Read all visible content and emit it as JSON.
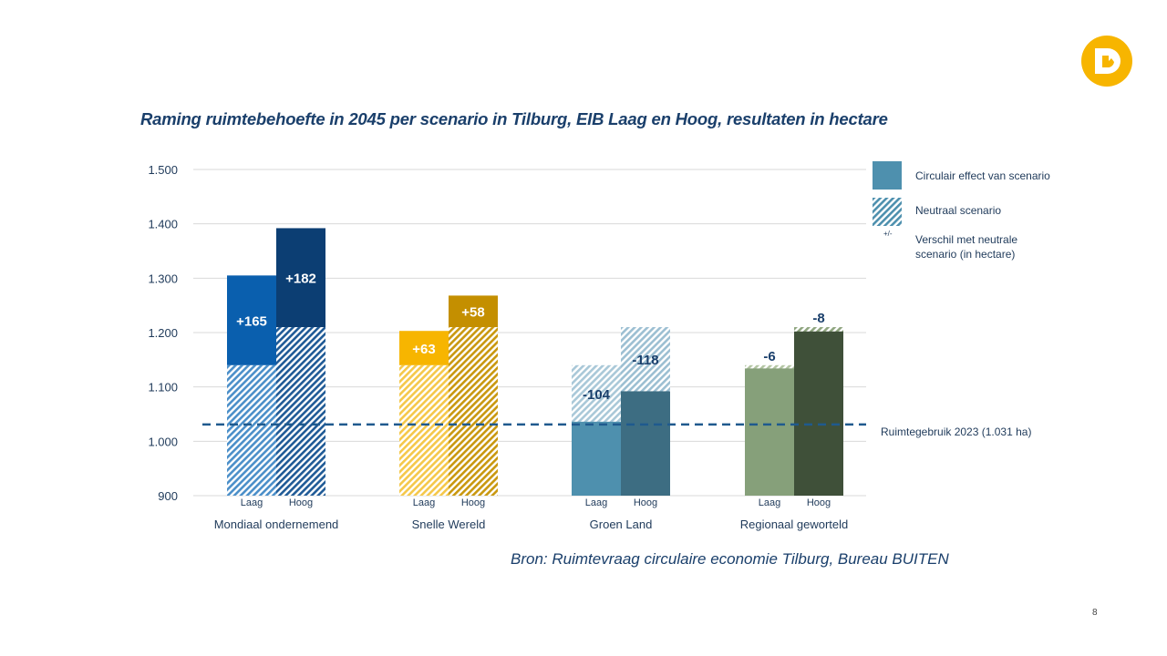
{
  "colors": {
    "title": "#1a3f6b",
    "axis_text": "#1f3a5a",
    "gridline": "#d9d9d9",
    "refline": "#1f5a8e",
    "logo": "#f7b500"
  },
  "page_number": "8",
  "source": "Bron: Ruimtevraag circulaire economie Tilburg, Bureau BUITEN",
  "chart_data": {
    "type": "bar",
    "title": "Raming ruimtebehoefte in 2045 per scenario in Tilburg, EIB Laag en Hoog, resultaten in hectare",
    "xlabel": "",
    "ylabel": "",
    "ylim": [
      900,
      1500
    ],
    "yticks": [
      900,
      1000,
      1100,
      1200,
      1300,
      1400,
      1500
    ],
    "ytick_labels": [
      "900",
      "1.000",
      "1.100",
      "1.200",
      "1.300",
      "1.400",
      "1.500"
    ],
    "grid": true,
    "legend_position": "right",
    "legend": [
      {
        "key": "circular",
        "label": "Circulair effect van scenario",
        "style": "solid"
      },
      {
        "key": "neutral",
        "label": "Neutraal scenario",
        "style": "hatched"
      },
      {
        "key": "diff",
        "symbol": "+/-",
        "label": "Verschil met neutrale scenario (in hectare)"
      }
    ],
    "reference_line": {
      "value": 1031,
      "label": "Ruimtegebruik 2023 (1.031 ha)",
      "style": "dashed"
    },
    "categories": [
      "Mondiaal ondernemend",
      "Snelle Wereld",
      "Groen Land",
      "Regionaal geworteld"
    ],
    "sub_categories": [
      "Laag",
      "Hoog"
    ],
    "series": [
      {
        "name": "Neutraal scenario",
        "values": [
          [
            1140,
            1210
          ],
          [
            1140,
            1210
          ],
          [
            1140,
            1210
          ],
          [
            1140,
            1210
          ]
        ]
      },
      {
        "name": "Circulair effect van scenario",
        "values": [
          [
            1305,
            1392
          ],
          [
            1203,
            1268
          ],
          [
            1036,
            1092
          ],
          [
            1134,
            1202
          ]
        ]
      }
    ],
    "differences": [
      [
        "+165",
        "+182"
      ],
      [
        "+63",
        "+58"
      ],
      [
        "-104",
        "-118"
      ],
      [
        "-6",
        "-8"
      ]
    ],
    "bar_colors": [
      {
        "laag": "#0a5fae",
        "hoog": "#0c3e73",
        "hatch_laag": "#4b8fc9",
        "hatch_hoog": "#1f5a96",
        "label_color": "#ffffff"
      },
      {
        "laag": "#f7b500",
        "hoog": "#c48f00",
        "hatch_laag": "#f5c84a",
        "hatch_hoog": "#c9980f",
        "label_color": "#ffffff"
      },
      {
        "laag": "#4e90ae",
        "hoog": "#3d6d82",
        "hatch_laag": "#a9c8d8",
        "hatch_hoog": "#9cbfd2",
        "label_color": "#1a3f6b"
      },
      {
        "laag": "#86a07a",
        "hoog": "#3f5039",
        "hatch_laag": "#b3c5a3",
        "hatch_hoog": "#8fa57f",
        "label_color": "#1a3f6b"
      }
    ]
  }
}
